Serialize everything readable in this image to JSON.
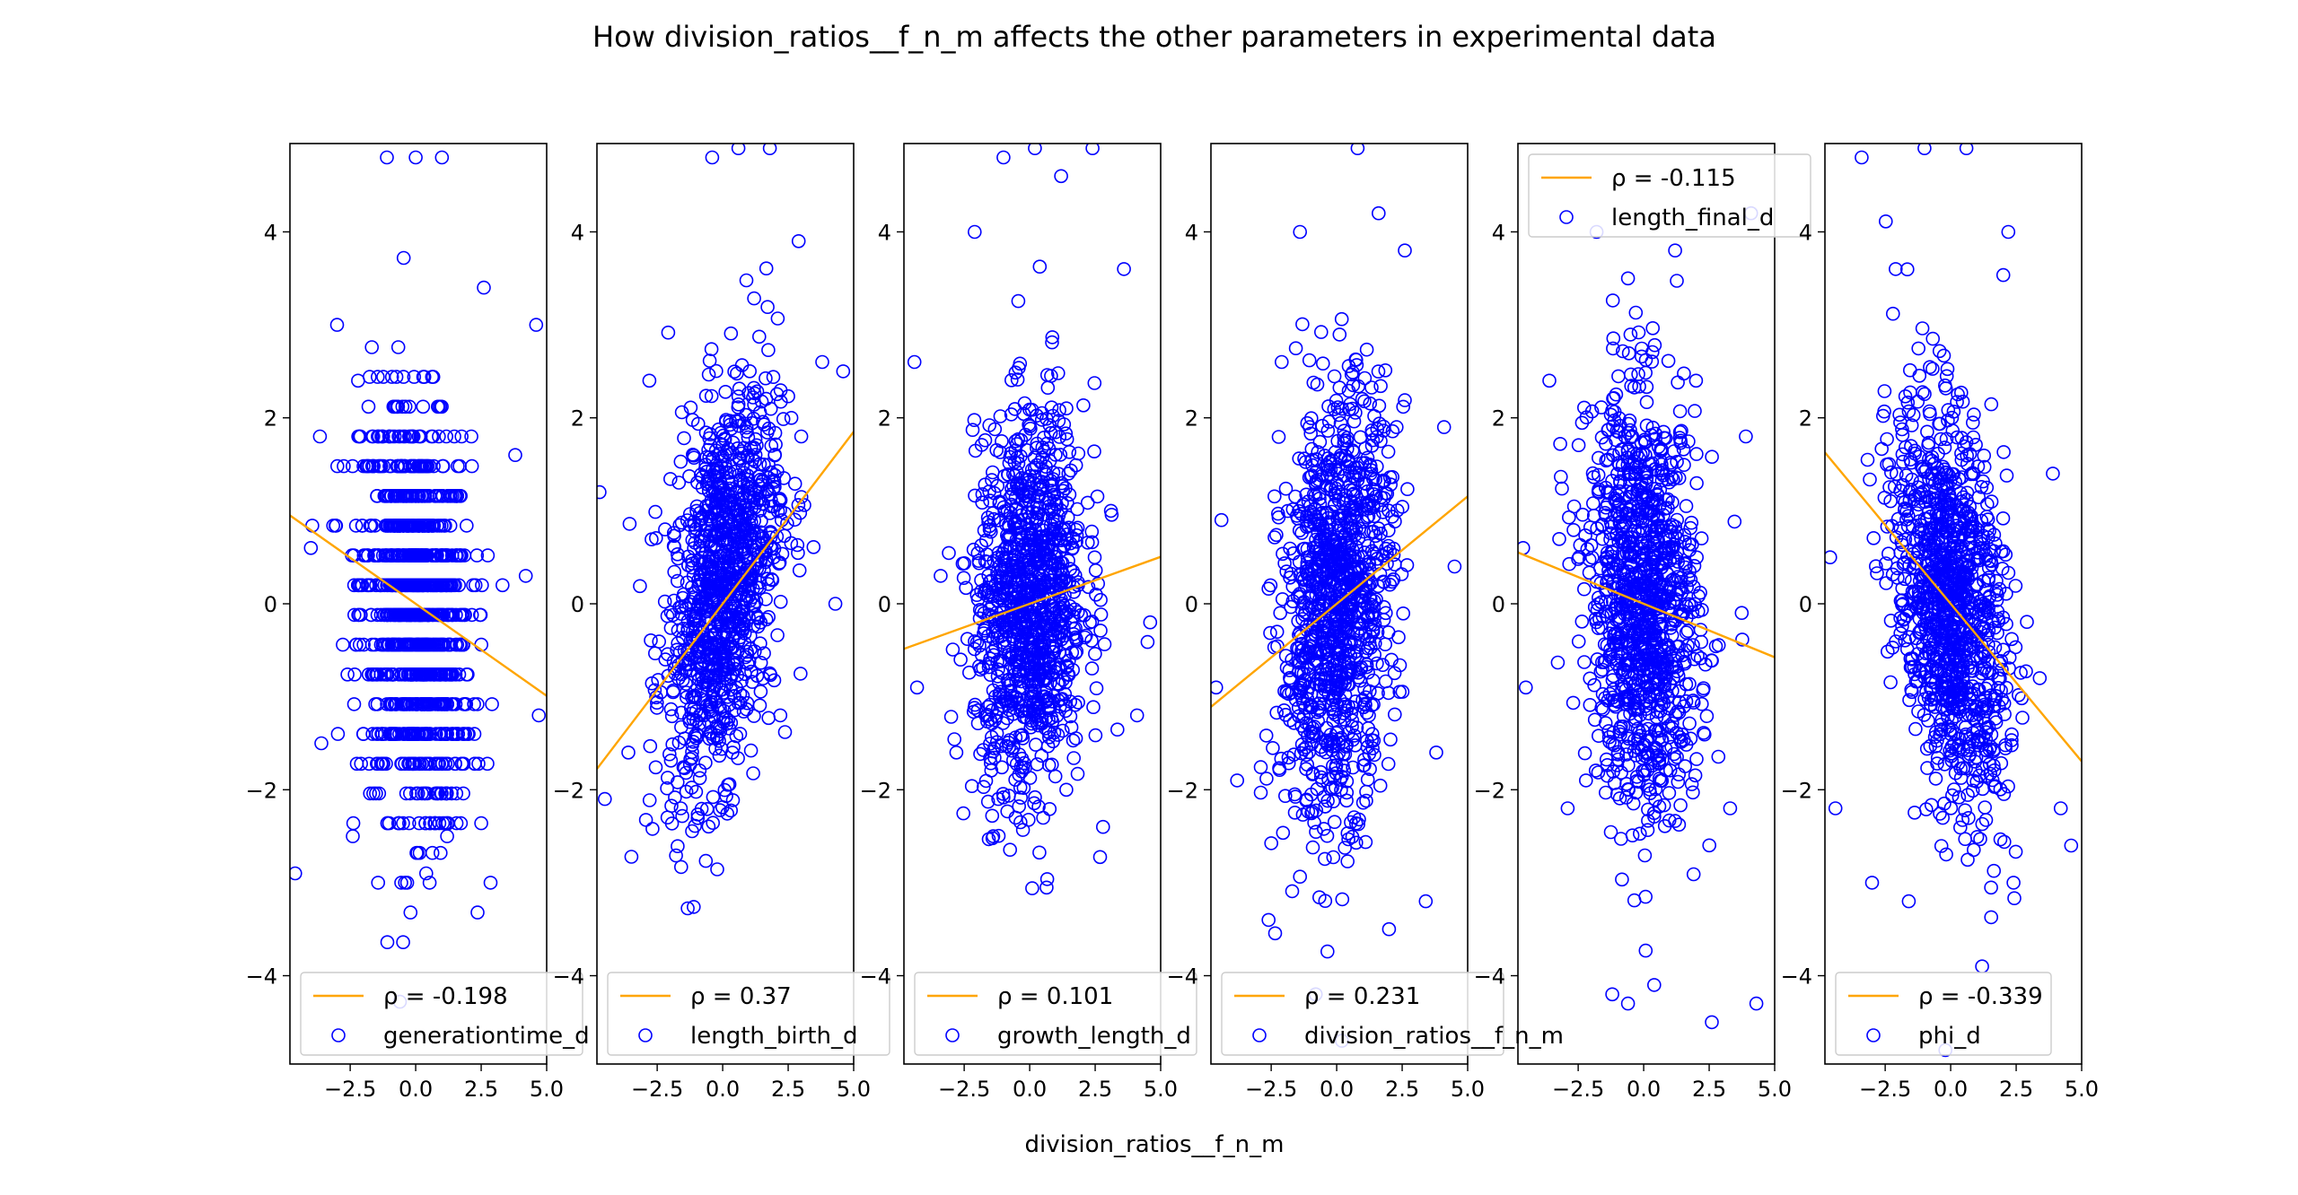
{
  "chart_data": {
    "type": "scatter",
    "title": "How division_ratios__f_n_m affects the other parameters in experimental data",
    "xlabel": "division_ratios__f_n_m",
    "xlim": [
      -4.8,
      5.0
    ],
    "ylim": [
      -4.95,
      4.95
    ],
    "xticks": [
      "−2.5",
      "0.0",
      "2.5",
      "5.0"
    ],
    "yticks": [
      "−4",
      "−2",
      "0",
      "2",
      "4"
    ],
    "scatter_color": "#0000ff",
    "line_color": "#ffa500",
    "legend_line_label_prefix": "ρ = ",
    "panels": [
      {
        "name": "generationtime_d",
        "rho": "-0.198",
        "slope": -0.198,
        "legend_position": "lower-left",
        "sample_points": [
          [
            -4.6,
            -2.9
          ],
          [
            -3.0,
            3.0
          ],
          [
            -2.2,
            2.4
          ],
          [
            -1.1,
            4.8
          ],
          [
            0.0,
            4.8
          ],
          [
            1.0,
            4.8
          ],
          [
            2.6,
            3.4
          ],
          [
            3.8,
            1.6
          ],
          [
            4.6,
            3.0
          ],
          [
            -2.4,
            -2.5
          ],
          [
            0.4,
            -2.9
          ],
          [
            1.2,
            -2.5
          ],
          [
            -3.6,
            -1.5
          ],
          [
            4.7,
            -1.2
          ],
          [
            -4.0,
            0.6
          ],
          [
            4.2,
            0.3
          ]
        ]
      },
      {
        "name": "length_birth_d",
        "rho": "0.37",
        "slope": 0.37,
        "legend_position": "lower-left",
        "sample_points": [
          [
            -4.7,
            1.2
          ],
          [
            -4.5,
            -2.1
          ],
          [
            -2.8,
            2.4
          ],
          [
            -1.6,
            -2.2
          ],
          [
            -0.4,
            4.8
          ],
          [
            0.6,
            4.9
          ],
          [
            1.8,
            4.9
          ],
          [
            2.9,
            3.9
          ],
          [
            3.8,
            2.6
          ],
          [
            4.6,
            2.5
          ],
          [
            -3.6,
            -1.6
          ],
          [
            -1.0,
            -1.4
          ],
          [
            2.2,
            -1.2
          ],
          [
            4.3,
            0.0
          ],
          [
            -2.2,
            0.8
          ],
          [
            3.0,
            1.8
          ]
        ]
      },
      {
        "name": "growth_length_d",
        "rho": "0.101",
        "slope": 0.101,
        "legend_position": "lower-left",
        "sample_points": [
          [
            -4.4,
            2.6
          ],
          [
            -4.3,
            -0.9
          ],
          [
            -3.4,
            0.3
          ],
          [
            -2.1,
            4.0
          ],
          [
            -1.0,
            4.8
          ],
          [
            0.2,
            4.9
          ],
          [
            1.2,
            4.6
          ],
          [
            2.4,
            4.9
          ],
          [
            3.6,
            3.6
          ],
          [
            4.6,
            -0.2
          ],
          [
            4.1,
            -1.2
          ],
          [
            -2.8,
            -1.6
          ],
          [
            -1.2,
            -2.1
          ],
          [
            1.4,
            -2.0
          ],
          [
            2.8,
            -2.4
          ],
          [
            3.1,
            1.0
          ]
        ]
      },
      {
        "name": "division_ratios__f_n_m",
        "rho": "0.231",
        "slope": 0.231,
        "legend_position": "lower-left",
        "sample_points": [
          [
            -4.6,
            -0.9
          ],
          [
            -4.4,
            0.9
          ],
          [
            -3.8,
            -1.9
          ],
          [
            -2.6,
            -3.4
          ],
          [
            -1.4,
            4.0
          ],
          [
            0.8,
            4.9
          ],
          [
            1.6,
            4.2
          ],
          [
            2.6,
            3.8
          ],
          [
            4.1,
            1.9
          ],
          [
            4.5,
            0.4
          ],
          [
            3.4,
            -3.2
          ],
          [
            2.0,
            -3.5
          ],
          [
            0.2,
            -4.7
          ],
          [
            -0.8,
            -4.2
          ],
          [
            -2.1,
            2.6
          ],
          [
            3.8,
            -1.6
          ]
        ]
      },
      {
        "name": "length_final_d",
        "rho": "-0.115",
        "slope": -0.115,
        "legend_position": "upper-left",
        "sample_points": [
          [
            -4.6,
            0.6
          ],
          [
            -4.5,
            -0.9
          ],
          [
            -3.6,
            2.4
          ],
          [
            -2.9,
            -2.2
          ],
          [
            -1.8,
            4.0
          ],
          [
            -0.6,
            3.5
          ],
          [
            1.2,
            3.8
          ],
          [
            2.0,
            2.4
          ],
          [
            3.3,
            -2.2
          ],
          [
            4.3,
            -4.3
          ],
          [
            4.1,
            4.2
          ],
          [
            2.6,
            -4.5
          ],
          [
            0.4,
            -4.1
          ],
          [
            -0.6,
            -4.3
          ],
          [
            -1.2,
            -4.2
          ],
          [
            3.9,
            1.8
          ]
        ]
      },
      {
        "name": "phi_d",
        "rho": "-0.339",
        "slope": -0.339,
        "legend_position": "lower-left",
        "sample_points": [
          [
            -4.6,
            0.5
          ],
          [
            -4.4,
            -2.2
          ],
          [
            -3.4,
            4.8
          ],
          [
            -2.1,
            3.6
          ],
          [
            -1.0,
            4.9
          ],
          [
            0.6,
            4.9
          ],
          [
            2.2,
            4.0
          ],
          [
            3.4,
            -0.8
          ],
          [
            4.6,
            -2.6
          ],
          [
            4.2,
            -2.2
          ],
          [
            2.4,
            -3.0
          ],
          [
            1.2,
            -3.9
          ],
          [
            -0.2,
            -4.8
          ],
          [
            -1.6,
            -3.2
          ],
          [
            -3.0,
            -3.0
          ],
          [
            3.9,
            1.4
          ]
        ]
      }
    ]
  }
}
